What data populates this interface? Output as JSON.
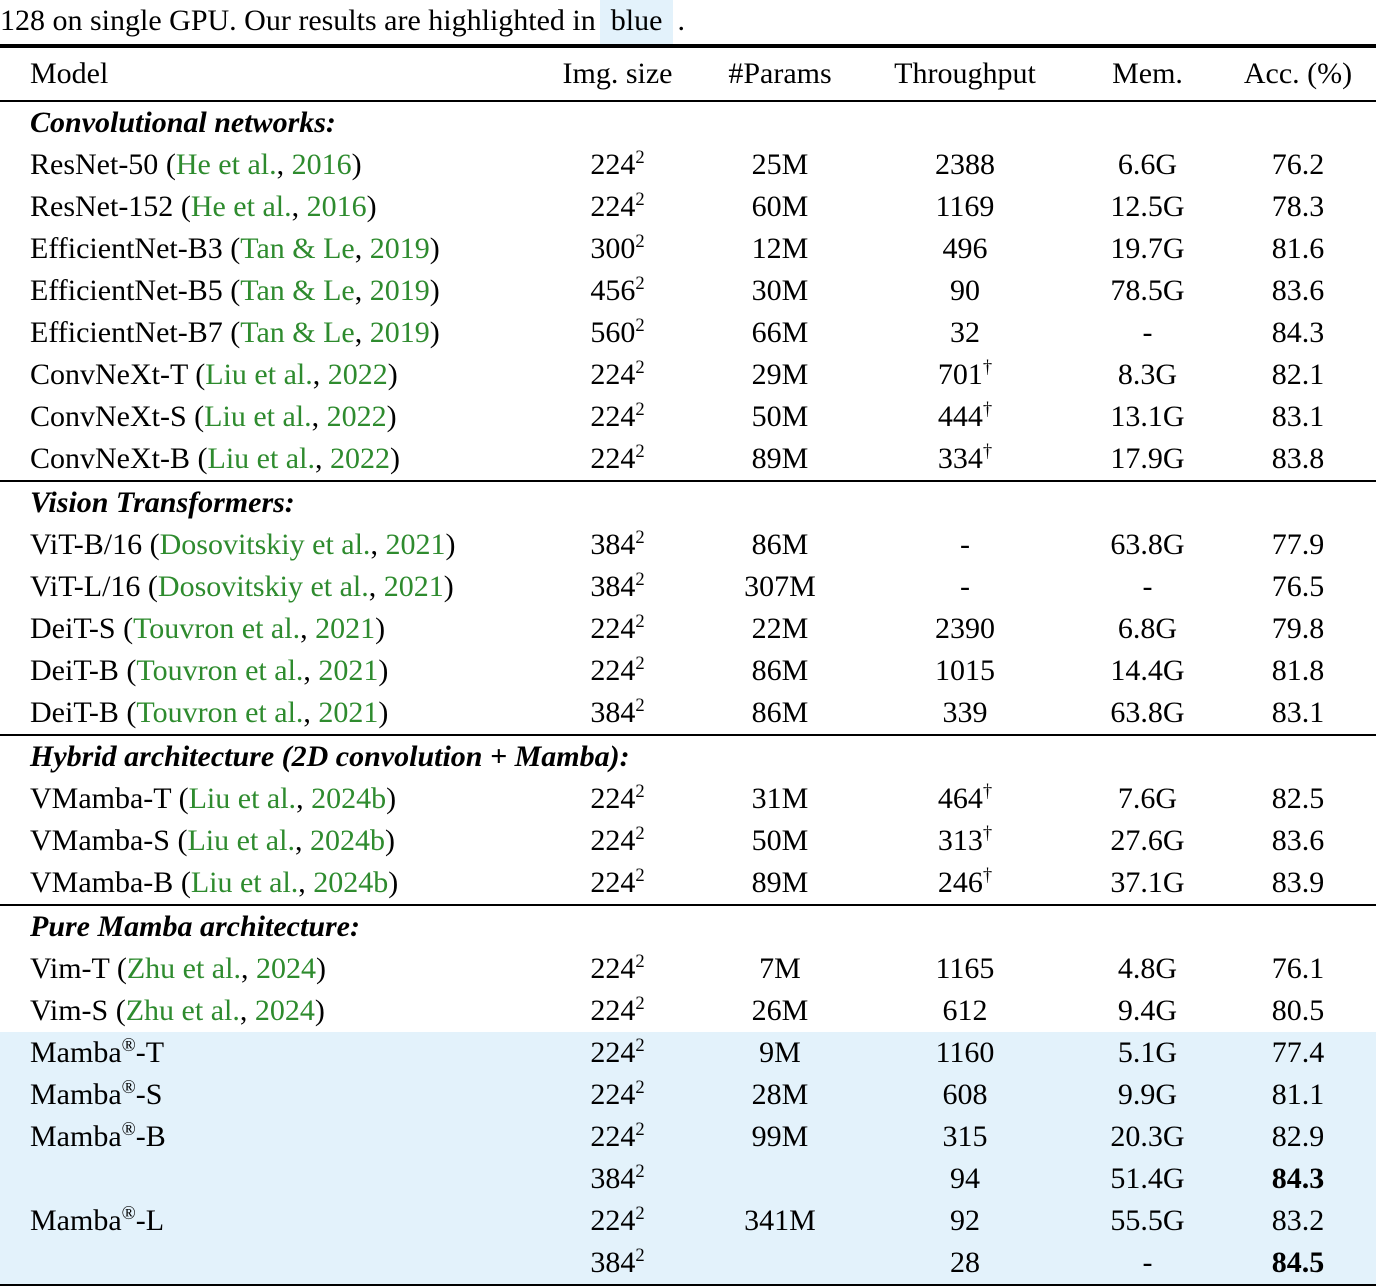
{
  "caption": {
    "prefix": "128 on single GPU. Our results are highlighted in",
    "highlighted_word": "blue",
    "suffix": ".",
    "highlight_color": "#E3F2FB"
  },
  "colors": {
    "citation_green": "#2E8B2E",
    "row_highlight_blue": "#E3F2FB",
    "text": "#000000",
    "background": "#ffffff"
  },
  "table": {
    "columns": [
      "Model",
      "Img. size",
      "#Params",
      "Throughput",
      "Mem.",
      "Acc. (%)"
    ],
    "img_size_exponent": "2",
    "dagger_symbol": "†",
    "registered_symbol": "®",
    "sections": [
      {
        "title": "Convolutional networks:",
        "rows": [
          {
            "model": {
              "name": "ResNet-50",
              "reg": false,
              "suffix": "",
              "cite": {
                "authors": "He et al.",
                "year": "2016"
              }
            },
            "img": "224",
            "params": "25M",
            "tp": "2388",
            "tp_dagger": false,
            "mem": "6.6G",
            "acc": "76.2",
            "acc_bold": false,
            "highlight": false
          },
          {
            "model": {
              "name": "ResNet-152",
              "reg": false,
              "suffix": "",
              "cite": {
                "authors": "He et al.",
                "year": "2016"
              }
            },
            "img": "224",
            "params": "60M",
            "tp": "1169",
            "tp_dagger": false,
            "mem": "12.5G",
            "acc": "78.3",
            "acc_bold": false,
            "highlight": false
          },
          {
            "model": {
              "name": "EfficientNet-B3",
              "reg": false,
              "suffix": "",
              "cite": {
                "authors": "Tan & Le",
                "year": "2019"
              }
            },
            "img": "300",
            "params": "12M",
            "tp": "496",
            "tp_dagger": false,
            "mem": "19.7G",
            "acc": "81.6",
            "acc_bold": false,
            "highlight": false
          },
          {
            "model": {
              "name": "EfficientNet-B5",
              "reg": false,
              "suffix": "",
              "cite": {
                "authors": "Tan & Le",
                "year": "2019"
              }
            },
            "img": "456",
            "params": "30M",
            "tp": "90",
            "tp_dagger": false,
            "mem": "78.5G",
            "acc": "83.6",
            "acc_bold": false,
            "highlight": false
          },
          {
            "model": {
              "name": "EfficientNet-B7",
              "reg": false,
              "suffix": "",
              "cite": {
                "authors": "Tan & Le",
                "year": "2019"
              }
            },
            "img": "560",
            "params": "66M",
            "tp": "32",
            "tp_dagger": false,
            "mem": "-",
            "acc": "84.3",
            "acc_bold": false,
            "highlight": false
          },
          {
            "model": {
              "name": "ConvNeXt-T",
              "reg": false,
              "suffix": "",
              "cite": {
                "authors": "Liu et al.",
                "year": "2022"
              }
            },
            "img": "224",
            "params": "29M",
            "tp": "701",
            "tp_dagger": true,
            "mem": "8.3G",
            "acc": "82.1",
            "acc_bold": false,
            "highlight": false
          },
          {
            "model": {
              "name": "ConvNeXt-S",
              "reg": false,
              "suffix": "",
              "cite": {
                "authors": "Liu et al.",
                "year": "2022"
              }
            },
            "img": "224",
            "params": "50M",
            "tp": "444",
            "tp_dagger": true,
            "mem": "13.1G",
            "acc": "83.1",
            "acc_bold": false,
            "highlight": false
          },
          {
            "model": {
              "name": "ConvNeXt-B",
              "reg": false,
              "suffix": "",
              "cite": {
                "authors": "Liu et al.",
                "year": "2022"
              }
            },
            "img": "224",
            "params": "89M",
            "tp": "334",
            "tp_dagger": true,
            "mem": "17.9G",
            "acc": "83.8",
            "acc_bold": false,
            "highlight": false
          }
        ]
      },
      {
        "title": "Vision Transformers:",
        "rows": [
          {
            "model": {
              "name": "ViT-B/16",
              "reg": false,
              "suffix": "",
              "cite": {
                "authors": "Dosovitskiy et al.",
                "year": "2021"
              }
            },
            "img": "384",
            "params": "86M",
            "tp": "-",
            "tp_dagger": false,
            "mem": "63.8G",
            "acc": "77.9",
            "acc_bold": false,
            "highlight": false
          },
          {
            "model": {
              "name": "ViT-L/16",
              "reg": false,
              "suffix": "",
              "cite": {
                "authors": "Dosovitskiy et al.",
                "year": "2021"
              }
            },
            "img": "384",
            "params": "307M",
            "tp": "-",
            "tp_dagger": false,
            "mem": "-",
            "acc": "76.5",
            "acc_bold": false,
            "highlight": false
          },
          {
            "model": {
              "name": "DeiT-S",
              "reg": false,
              "suffix": "",
              "cite": {
                "authors": "Touvron et al.",
                "year": "2021"
              }
            },
            "img": "224",
            "params": "22M",
            "tp": "2390",
            "tp_dagger": false,
            "mem": "6.8G",
            "acc": "79.8",
            "acc_bold": false,
            "highlight": false
          },
          {
            "model": {
              "name": "DeiT-B",
              "reg": false,
              "suffix": "",
              "cite": {
                "authors": "Touvron et al.",
                "year": "2021"
              }
            },
            "img": "224",
            "params": "86M",
            "tp": "1015",
            "tp_dagger": false,
            "mem": "14.4G",
            "acc": "81.8",
            "acc_bold": false,
            "highlight": false
          },
          {
            "model": {
              "name": "DeiT-B",
              "reg": false,
              "suffix": "",
              "cite": {
                "authors": "Touvron et al.",
                "year": "2021"
              }
            },
            "img": "384",
            "params": "86M",
            "tp": "339",
            "tp_dagger": false,
            "mem": "63.8G",
            "acc": "83.1",
            "acc_bold": false,
            "highlight": false
          }
        ]
      },
      {
        "title": "Hybrid architecture (2D convolution + Mamba):",
        "rows": [
          {
            "model": {
              "name": "VMamba-T",
              "reg": false,
              "suffix": "",
              "cite": {
                "authors": "Liu et al.",
                "year": "2024b"
              }
            },
            "img": "224",
            "params": "31M",
            "tp": "464",
            "tp_dagger": true,
            "mem": "7.6G",
            "acc": "82.5",
            "acc_bold": false,
            "highlight": false
          },
          {
            "model": {
              "name": "VMamba-S",
              "reg": false,
              "suffix": "",
              "cite": {
                "authors": "Liu et al.",
                "year": "2024b"
              }
            },
            "img": "224",
            "params": "50M",
            "tp": "313",
            "tp_dagger": true,
            "mem": "27.6G",
            "acc": "83.6",
            "acc_bold": false,
            "highlight": false
          },
          {
            "model": {
              "name": "VMamba-B",
              "reg": false,
              "suffix": "",
              "cite": {
                "authors": "Liu et al.",
                "year": "2024b"
              }
            },
            "img": "224",
            "params": "89M",
            "tp": "246",
            "tp_dagger": true,
            "mem": "37.1G",
            "acc": "83.9",
            "acc_bold": false,
            "highlight": false
          }
        ]
      },
      {
        "title": "Pure Mamba architecture:",
        "rows": [
          {
            "model": {
              "name": "Vim-T",
              "reg": false,
              "suffix": "",
              "cite": {
                "authors": "Zhu et al.",
                "year": "2024"
              }
            },
            "img": "224",
            "params": "7M",
            "tp": "1165",
            "tp_dagger": false,
            "mem": "4.8G",
            "acc": "76.1",
            "acc_bold": false,
            "highlight": false
          },
          {
            "model": {
              "name": "Vim-S",
              "reg": false,
              "suffix": "",
              "cite": {
                "authors": "Zhu et al.",
                "year": "2024"
              }
            },
            "img": "224",
            "params": "26M",
            "tp": "612",
            "tp_dagger": false,
            "mem": "9.4G",
            "acc": "80.5",
            "acc_bold": false,
            "highlight": false
          },
          {
            "model": {
              "name": "Mamba",
              "reg": true,
              "suffix": "-T",
              "cite": null
            },
            "img": "224",
            "params": "9M",
            "tp": "1160",
            "tp_dagger": false,
            "mem": "5.1G",
            "acc": "77.4",
            "acc_bold": false,
            "highlight": true
          },
          {
            "model": {
              "name": "Mamba",
              "reg": true,
              "suffix": "-S",
              "cite": null
            },
            "img": "224",
            "params": "28M",
            "tp": "608",
            "tp_dagger": false,
            "mem": "9.9G",
            "acc": "81.1",
            "acc_bold": false,
            "highlight": true
          },
          {
            "model": {
              "name": "Mamba",
              "reg": true,
              "suffix": "-B",
              "cite": null
            },
            "img": "224",
            "params": "99M",
            "tp": "315",
            "tp_dagger": false,
            "mem": "20.3G",
            "acc": "82.9",
            "acc_bold": false,
            "highlight": true
          },
          {
            "model": null,
            "img": "384",
            "params": "",
            "tp": "94",
            "tp_dagger": false,
            "mem": "51.4G",
            "acc": "84.3",
            "acc_bold": true,
            "highlight": true
          },
          {
            "model": {
              "name": "Mamba",
              "reg": true,
              "suffix": "-L",
              "cite": null
            },
            "img": "224",
            "params": "341M",
            "tp": "92",
            "tp_dagger": false,
            "mem": "55.5G",
            "acc": "83.2",
            "acc_bold": false,
            "highlight": true
          },
          {
            "model": null,
            "img": "384",
            "params": "",
            "tp": "28",
            "tp_dagger": false,
            "mem": "-",
            "acc": "84.5",
            "acc_bold": true,
            "highlight": true
          }
        ]
      }
    ]
  }
}
